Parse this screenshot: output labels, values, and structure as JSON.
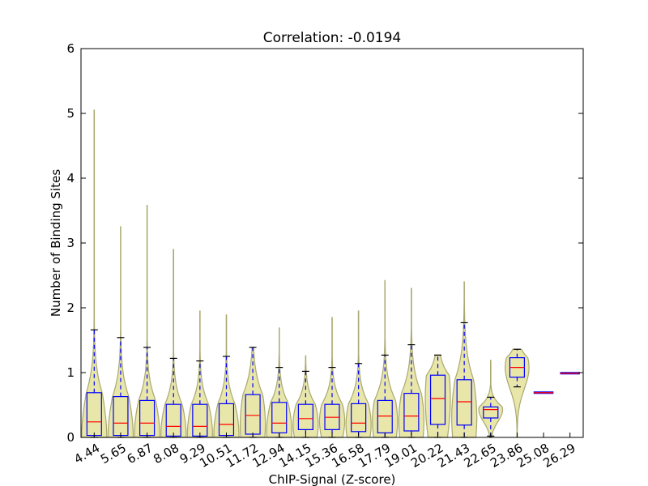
{
  "chart_data": {
    "type": "violin",
    "title": "Correlation: -0.0194",
    "xlabel": "ChIP-Signal (Z-score)",
    "ylabel": "Number of Binding Sites",
    "ylim": [
      0,
      6
    ],
    "yticks": [
      0,
      1,
      2,
      3,
      4,
      5,
      6
    ],
    "grid": false,
    "colors": {
      "violin_fill": "#e8e6a8",
      "violin_edge": "#a8a870",
      "box": "#0000ff",
      "median": "#ff0000",
      "whisker_cap": "#000000"
    },
    "categories": [
      "4.44",
      "5.65",
      "6.87",
      "8.08",
      "9.29",
      "10.51",
      "11.72",
      "12.94",
      "14.15",
      "15.36",
      "16.58",
      "17.79",
      "19.01",
      "20.22",
      "21.43",
      "22.65",
      "23.86",
      "25.08",
      "26.29"
    ],
    "groups": [
      {
        "q1": 0.03,
        "median": 0.24,
        "q3": 0.69,
        "whisker_low": 0.0,
        "whisker_high": 1.66,
        "max": 5.05,
        "violin_width": 0.95,
        "violin_peak": 0.0,
        "has_box": true
      },
      {
        "q1": 0.03,
        "median": 0.22,
        "q3": 0.63,
        "whisker_low": 0.0,
        "whisker_high": 1.54,
        "max": 3.25,
        "violin_width": 0.95,
        "violin_peak": 0.02,
        "has_box": true
      },
      {
        "q1": 0.03,
        "median": 0.22,
        "q3": 0.57,
        "whisker_low": 0.0,
        "whisker_high": 1.39,
        "max": 3.58,
        "violin_width": 0.95,
        "violin_peak": 0.05,
        "has_box": true
      },
      {
        "q1": 0.02,
        "median": 0.17,
        "q3": 0.51,
        "whisker_low": 0.0,
        "whisker_high": 1.22,
        "max": 2.9,
        "violin_width": 0.95,
        "violin_peak": 0.05,
        "has_box": true
      },
      {
        "q1": 0.02,
        "median": 0.17,
        "q3": 0.51,
        "whisker_low": 0.0,
        "whisker_high": 1.18,
        "max": 1.95,
        "violin_width": 0.95,
        "violin_peak": 0.05,
        "has_box": true
      },
      {
        "q1": 0.03,
        "median": 0.2,
        "q3": 0.52,
        "whisker_low": 0.0,
        "whisker_high": 1.25,
        "max": 1.89,
        "violin_width": 0.95,
        "violin_peak": 0.05,
        "has_box": true
      },
      {
        "q1": 0.05,
        "median": 0.34,
        "q3": 0.66,
        "whisker_low": 0.0,
        "whisker_high": 1.39,
        "max": 1.39,
        "violin_width": 0.95,
        "violin_peak": 0.2,
        "has_box": true
      },
      {
        "q1": 0.07,
        "median": 0.22,
        "q3": 0.54,
        "whisker_low": 0.0,
        "whisker_high": 1.08,
        "max": 1.69,
        "violin_width": 0.95,
        "violin_peak": 0.1,
        "has_box": true
      },
      {
        "q1": 0.12,
        "median": 0.29,
        "q3": 0.51,
        "whisker_low": 0.0,
        "whisker_high": 1.02,
        "max": 1.26,
        "violin_width": 0.95,
        "violin_peak": 0.2,
        "has_box": true
      },
      {
        "q1": 0.12,
        "median": 0.31,
        "q3": 0.51,
        "whisker_low": 0.0,
        "whisker_high": 1.08,
        "max": 1.85,
        "violin_width": 0.95,
        "violin_peak": 0.25,
        "has_box": true
      },
      {
        "q1": 0.09,
        "median": 0.22,
        "q3": 0.52,
        "whisker_low": 0.0,
        "whisker_high": 1.14,
        "max": 1.95,
        "violin_width": 0.95,
        "violin_peak": 0.2,
        "has_box": true
      },
      {
        "q1": 0.07,
        "median": 0.33,
        "q3": 0.57,
        "whisker_low": 0.0,
        "whisker_high": 1.27,
        "max": 2.42,
        "violin_width": 0.95,
        "violin_peak": 0.25,
        "has_box": true
      },
      {
        "q1": 0.1,
        "median": 0.33,
        "q3": 0.68,
        "whisker_low": 0.0,
        "whisker_high": 1.43,
        "max": 2.3,
        "violin_width": 0.95,
        "violin_peak": 0.25,
        "has_box": true
      },
      {
        "q1": 0.2,
        "median": 0.6,
        "q3": 0.96,
        "whisker_low": 0.0,
        "whisker_high": 1.27,
        "max": 1.27,
        "violin_width": 0.95,
        "violin_peak": 0.6,
        "has_box": true
      },
      {
        "q1": 0.19,
        "median": 0.55,
        "q3": 0.89,
        "whisker_low": 0.0,
        "whisker_high": 1.77,
        "max": 2.4,
        "violin_width": 0.95,
        "violin_peak": 0.3,
        "has_box": true
      },
      {
        "q1": 0.3,
        "median": 0.43,
        "q3": 0.47,
        "whisker_low": 0.02,
        "whisker_high": 0.62,
        "max": 1.19,
        "violin_width": 0.9,
        "violin_peak": 0.43,
        "has_box": true
      },
      {
        "q1": 0.93,
        "median": 1.08,
        "q3": 1.23,
        "whisker_low": 0.78,
        "whisker_high": 1.36,
        "max": 1.36,
        "violin_width": 0.9,
        "violin_peak": 1.08,
        "has_box": true
      },
      {
        "q1": 0.69,
        "median": 0.69,
        "q3": 0.69,
        "whisker_low": 0.69,
        "whisker_high": 0.69,
        "max": 0.69,
        "violin_width": 0.0,
        "violin_peak": 0.69,
        "has_box": false
      },
      {
        "q1": 0.99,
        "median": 0.99,
        "q3": 0.99,
        "whisker_low": 0.99,
        "whisker_high": 0.99,
        "max": 0.99,
        "violin_width": 0.0,
        "violin_peak": 0.99,
        "has_box": false
      }
    ]
  }
}
